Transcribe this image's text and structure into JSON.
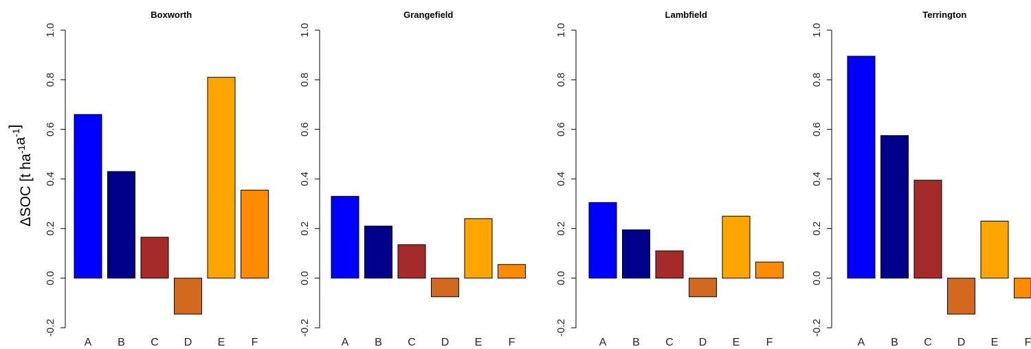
{
  "chart_data": [
    {
      "type": "bar",
      "title": "Boxworth",
      "categories": [
        "A",
        "B",
        "C",
        "D",
        "E",
        "F"
      ],
      "values": [
        0.66,
        0.43,
        0.165,
        -0.145,
        0.81,
        0.355
      ],
      "ylim": [
        -0.2,
        1.0
      ],
      "yticks": [
        "-0.2",
        "0.0",
        "0.2",
        "0.4",
        "0.6",
        "0.8",
        "1.0"
      ],
      "ylabel": "ΔSOC [t ha⁻¹a⁻¹]"
    },
    {
      "type": "bar",
      "title": "Grangefield",
      "categories": [
        "A",
        "B",
        "C",
        "D",
        "E",
        "F"
      ],
      "values": [
        0.33,
        0.21,
        0.135,
        -0.075,
        0.24,
        0.055
      ],
      "ylim": [
        -0.2,
        1.0
      ],
      "yticks": [
        "-0.2",
        "0.0",
        "0.2",
        "0.4",
        "0.6",
        "0.8",
        "1.0"
      ],
      "ylabel": ""
    },
    {
      "type": "bar",
      "title": "Lambfield",
      "categories": [
        "A",
        "B",
        "C",
        "D",
        "E",
        "F"
      ],
      "values": [
        0.305,
        0.195,
        0.11,
        -0.075,
        0.25,
        0.065
      ],
      "ylim": [
        -0.2,
        1.0
      ],
      "yticks": [
        "-0.2",
        "0.0",
        "0.2",
        "0.4",
        "0.6",
        "0.8",
        "1.0"
      ],
      "ylabel": ""
    },
    {
      "type": "bar",
      "title": "Terrington",
      "categories": [
        "A",
        "B",
        "C",
        "D",
        "E",
        "F"
      ],
      "values": [
        0.895,
        0.575,
        0.395,
        -0.145,
        0.23,
        -0.08
      ],
      "ylim": [
        -0.2,
        1.0
      ],
      "yticks": [
        "-0.2",
        "0.0",
        "0.2",
        "0.4",
        "0.6",
        "0.8",
        "1.0"
      ],
      "ylabel": ""
    }
  ],
  "colors": {
    "A": "#0000ff",
    "B": "#00008b",
    "C": "#a52a2a",
    "D": "#d2691e",
    "E": "#ffa500",
    "F": "#ff8c00",
    "bar_border": "#000000"
  }
}
